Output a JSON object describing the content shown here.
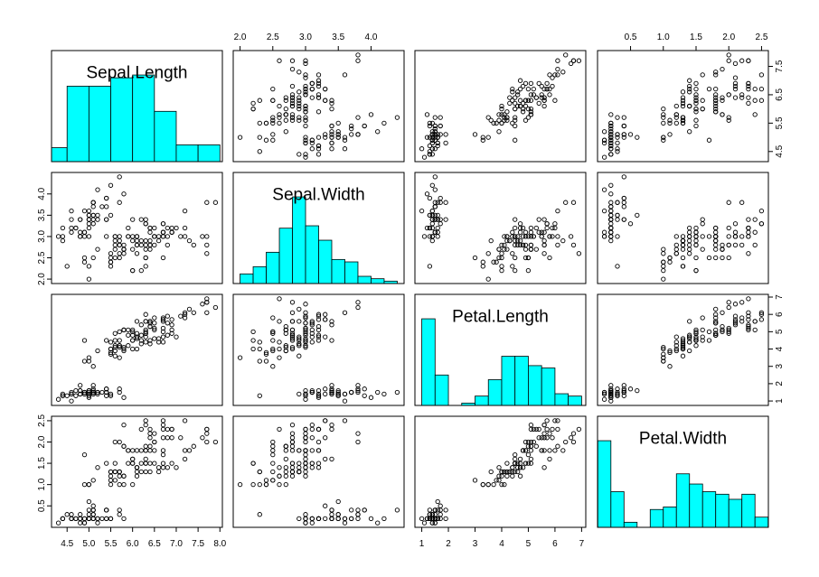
{
  "chart_data": {
    "type": "scatter-matrix",
    "variables": [
      "Sepal.Length",
      "Sepal.Width",
      "Petal.Length",
      "Petal.Width"
    ],
    "bar_color": "#00FFFF",
    "ranges": [
      [
        4.3,
        7.9
      ],
      [
        2.0,
        4.4
      ],
      [
        1.0,
        6.9
      ],
      [
        0.1,
        2.5
      ]
    ],
    "ticks": [
      [
        "4.5",
        "5.0",
        "5.5",
        "6.0",
        "6.5",
        "7.0",
        "7.5",
        "8.0"
      ],
      [
        "2.0",
        "2.5",
        "3.0",
        "3.5",
        "4.0"
      ],
      [
        "1",
        "2",
        "3",
        "4",
        "5",
        "6",
        "7"
      ],
      [
        "0.5",
        "1.0",
        "1.5",
        "2.0",
        "2.5"
      ]
    ],
    "right_ticks": [
      [
        "4.5",
        "5.5",
        "6.5",
        "7.5"
      ],
      [
        "2.0",
        "2.5",
        "3.0",
        "3.5",
        "4.0"
      ],
      [
        "1",
        "2",
        "3",
        "4",
        "5",
        "6",
        "7"
      ],
      [
        "0.5",
        "1.0",
        "1.5",
        "2.0",
        "2.5"
      ]
    ],
    "histograms": [
      {
        "breaks": [
          4.0,
          4.5,
          5.0,
          5.5,
          6.0,
          6.5,
          7.0,
          7.5,
          8.0
        ],
        "counts": [
          5,
          27,
          27,
          30,
          31,
          18,
          6,
          6
        ]
      },
      {
        "breaks": [
          2.0,
          2.2,
          2.4,
          2.6,
          2.8,
          3.0,
          3.2,
          3.4,
          3.6,
          3.8,
          4.0,
          4.2,
          4.4
        ],
        "counts": [
          4,
          7,
          13,
          23,
          36,
          24,
          18,
          10,
          9,
          3,
          2,
          1
        ]
      },
      {
        "breaks": [
          1.0,
          1.5,
          2.0,
          2.5,
          3.0,
          3.5,
          4.0,
          4.5,
          5.0,
          5.5,
          6.0,
          6.5,
          7.0
        ],
        "counts": [
          37,
          13,
          0,
          1,
          4,
          11,
          21,
          21,
          17,
          16,
          5,
          4
        ]
      },
      {
        "breaks": [
          0.0,
          0.2,
          0.4,
          0.6,
          0.8,
          1.0,
          1.2,
          1.4,
          1.6,
          1.8,
          2.0,
          2.2,
          2.4,
          2.6
        ],
        "counts": [
          34,
          14,
          2,
          0,
          7,
          8,
          21,
          17,
          14,
          13,
          11,
          13,
          4
        ]
      }
    ],
    "data": [
      [
        5.1,
        3.5,
        1.4,
        0.2
      ],
      [
        4.9,
        3.0,
        1.4,
        0.2
      ],
      [
        4.7,
        3.2,
        1.3,
        0.2
      ],
      [
        4.6,
        3.1,
        1.5,
        0.2
      ],
      [
        5.0,
        3.6,
        1.4,
        0.2
      ],
      [
        5.4,
        3.9,
        1.7,
        0.4
      ],
      [
        4.6,
        3.4,
        1.4,
        0.3
      ],
      [
        5.0,
        3.4,
        1.5,
        0.2
      ],
      [
        4.4,
        2.9,
        1.4,
        0.2
      ],
      [
        4.9,
        3.1,
        1.5,
        0.1
      ],
      [
        5.4,
        3.7,
        1.5,
        0.2
      ],
      [
        4.8,
        3.4,
        1.6,
        0.2
      ],
      [
        4.8,
        3.0,
        1.4,
        0.1
      ],
      [
        4.3,
        3.0,
        1.1,
        0.1
      ],
      [
        5.8,
        4.0,
        1.2,
        0.2
      ],
      [
        5.7,
        4.4,
        1.5,
        0.4
      ],
      [
        5.4,
        3.9,
        1.3,
        0.4
      ],
      [
        5.1,
        3.5,
        1.4,
        0.3
      ],
      [
        5.7,
        3.8,
        1.7,
        0.3
      ],
      [
        5.1,
        3.8,
        1.5,
        0.3
      ],
      [
        5.4,
        3.4,
        1.7,
        0.2
      ],
      [
        5.1,
        3.7,
        1.5,
        0.4
      ],
      [
        4.6,
        3.6,
        1.0,
        0.2
      ],
      [
        5.1,
        3.3,
        1.7,
        0.5
      ],
      [
        4.8,
        3.4,
        1.9,
        0.2
      ],
      [
        5.0,
        3.0,
        1.6,
        0.2
      ],
      [
        5.0,
        3.4,
        1.6,
        0.4
      ],
      [
        5.2,
        3.5,
        1.5,
        0.2
      ],
      [
        5.2,
        3.4,
        1.4,
        0.2
      ],
      [
        4.7,
        3.2,
        1.6,
        0.2
      ],
      [
        4.8,
        3.1,
        1.6,
        0.2
      ],
      [
        5.4,
        3.4,
        1.5,
        0.4
      ],
      [
        5.2,
        4.1,
        1.5,
        0.1
      ],
      [
        5.5,
        4.2,
        1.4,
        0.2
      ],
      [
        4.9,
        3.1,
        1.5,
        0.2
      ],
      [
        5.0,
        3.2,
        1.2,
        0.2
      ],
      [
        5.5,
        3.5,
        1.3,
        0.2
      ],
      [
        4.9,
        3.6,
        1.4,
        0.1
      ],
      [
        4.4,
        3.0,
        1.3,
        0.2
      ],
      [
        5.1,
        3.4,
        1.5,
        0.2
      ],
      [
        5.0,
        3.5,
        1.3,
        0.3
      ],
      [
        4.5,
        2.3,
        1.3,
        0.3
      ],
      [
        4.4,
        3.2,
        1.3,
        0.2
      ],
      [
        5.0,
        3.5,
        1.6,
        0.6
      ],
      [
        5.1,
        3.8,
        1.9,
        0.4
      ],
      [
        4.8,
        3.0,
        1.4,
        0.3
      ],
      [
        5.1,
        3.8,
        1.6,
        0.2
      ],
      [
        4.6,
        3.2,
        1.4,
        0.2
      ],
      [
        5.3,
        3.7,
        1.5,
        0.2
      ],
      [
        5.0,
        3.3,
        1.4,
        0.2
      ],
      [
        7.0,
        3.2,
        4.7,
        1.4
      ],
      [
        6.4,
        3.2,
        4.5,
        1.5
      ],
      [
        6.9,
        3.1,
        4.9,
        1.5
      ],
      [
        5.5,
        2.3,
        4.0,
        1.3
      ],
      [
        6.5,
        2.8,
        4.6,
        1.5
      ],
      [
        5.7,
        2.8,
        4.5,
        1.3
      ],
      [
        6.3,
        3.3,
        4.7,
        1.6
      ],
      [
        4.9,
        2.4,
        3.3,
        1.0
      ],
      [
        6.6,
        2.9,
        4.6,
        1.3
      ],
      [
        5.2,
        2.7,
        3.9,
        1.4
      ],
      [
        5.0,
        2.0,
        3.5,
        1.0
      ],
      [
        5.9,
        3.0,
        4.2,
        1.5
      ],
      [
        6.0,
        2.2,
        4.0,
        1.0
      ],
      [
        6.1,
        2.9,
        4.7,
        1.4
      ],
      [
        5.6,
        2.9,
        3.6,
        1.3
      ],
      [
        6.7,
        3.1,
        4.4,
        1.4
      ],
      [
        5.6,
        3.0,
        4.5,
        1.5
      ],
      [
        5.8,
        2.7,
        4.1,
        1.0
      ],
      [
        6.2,
        2.2,
        4.5,
        1.5
      ],
      [
        5.6,
        2.5,
        3.9,
        1.1
      ],
      [
        5.9,
        3.2,
        4.8,
        1.8
      ],
      [
        6.1,
        2.8,
        4.0,
        1.3
      ],
      [
        6.3,
        2.5,
        4.9,
        1.5
      ],
      [
        6.1,
        2.8,
        4.7,
        1.2
      ],
      [
        6.4,
        2.9,
        4.3,
        1.3
      ],
      [
        6.6,
        3.0,
        4.4,
        1.4
      ],
      [
        6.8,
        2.8,
        4.8,
        1.4
      ],
      [
        6.7,
        3.0,
        5.0,
        1.7
      ],
      [
        6.0,
        2.9,
        4.5,
        1.5
      ],
      [
        5.7,
        2.6,
        3.5,
        1.0
      ],
      [
        5.5,
        2.4,
        3.8,
        1.1
      ],
      [
        5.5,
        2.4,
        3.7,
        1.0
      ],
      [
        5.8,
        2.7,
        3.9,
        1.2
      ],
      [
        6.0,
        2.7,
        5.1,
        1.6
      ],
      [
        5.4,
        3.0,
        4.5,
        1.5
      ],
      [
        6.0,
        3.4,
        4.5,
        1.6
      ],
      [
        6.7,
        3.1,
        4.7,
        1.5
      ],
      [
        6.3,
        2.3,
        4.4,
        1.3
      ],
      [
        5.6,
        3.0,
        4.1,
        1.3
      ],
      [
        5.5,
        2.5,
        4.0,
        1.3
      ],
      [
        5.5,
        2.6,
        4.4,
        1.2
      ],
      [
        6.1,
        3.0,
        4.6,
        1.4
      ],
      [
        5.8,
        2.6,
        4.0,
        1.2
      ],
      [
        5.0,
        2.3,
        3.3,
        1.0
      ],
      [
        5.6,
        2.7,
        4.2,
        1.3
      ],
      [
        5.7,
        3.0,
        4.2,
        1.2
      ],
      [
        5.7,
        2.9,
        4.2,
        1.3
      ],
      [
        6.2,
        2.9,
        4.3,
        1.3
      ],
      [
        5.1,
        2.5,
        3.0,
        1.1
      ],
      [
        5.7,
        2.8,
        4.1,
        1.3
      ],
      [
        6.3,
        3.3,
        6.0,
        2.5
      ],
      [
        5.8,
        2.7,
        5.1,
        1.9
      ],
      [
        7.1,
        3.0,
        5.9,
        2.1
      ],
      [
        6.3,
        2.9,
        5.6,
        1.8
      ],
      [
        6.5,
        3.0,
        5.8,
        2.2
      ],
      [
        7.6,
        3.0,
        6.6,
        2.1
      ],
      [
        4.9,
        2.5,
        4.5,
        1.7
      ],
      [
        7.3,
        2.9,
        6.3,
        1.8
      ],
      [
        6.7,
        2.5,
        5.8,
        1.8
      ],
      [
        7.2,
        3.6,
        6.1,
        2.5
      ],
      [
        6.5,
        3.2,
        5.1,
        2.0
      ],
      [
        6.4,
        2.7,
        5.3,
        1.9
      ],
      [
        6.8,
        3.0,
        5.5,
        2.1
      ],
      [
        5.7,
        2.5,
        5.0,
        2.0
      ],
      [
        5.8,
        2.8,
        5.1,
        2.4
      ],
      [
        6.4,
        3.2,
        5.3,
        2.3
      ],
      [
        6.5,
        3.0,
        5.5,
        1.8
      ],
      [
        7.7,
        3.8,
        6.7,
        2.2
      ],
      [
        7.7,
        2.6,
        6.9,
        2.3
      ],
      [
        6.0,
        2.2,
        5.0,
        1.5
      ],
      [
        6.9,
        3.2,
        5.7,
        2.3
      ],
      [
        5.6,
        2.8,
        4.9,
        2.0
      ],
      [
        7.7,
        2.8,
        6.7,
        2.0
      ],
      [
        6.3,
        2.7,
        4.9,
        1.8
      ],
      [
        6.7,
        3.3,
        5.7,
        2.1
      ],
      [
        7.2,
        3.2,
        6.0,
        1.8
      ],
      [
        6.2,
        2.8,
        4.8,
        1.8
      ],
      [
        6.1,
        3.0,
        4.9,
        1.8
      ],
      [
        6.4,
        2.8,
        5.6,
        2.1
      ],
      [
        7.2,
        3.0,
        5.8,
        1.6
      ],
      [
        7.4,
        2.8,
        6.1,
        1.9
      ],
      [
        7.9,
        3.8,
        6.4,
        2.0
      ],
      [
        6.4,
        2.8,
        5.6,
        2.2
      ],
      [
        6.3,
        2.8,
        5.1,
        1.5
      ],
      [
        6.1,
        2.6,
        5.6,
        1.4
      ],
      [
        7.7,
        3.0,
        6.1,
        2.3
      ],
      [
        6.3,
        3.4,
        5.6,
        2.4
      ],
      [
        6.4,
        3.1,
        5.5,
        1.8
      ],
      [
        6.0,
        3.0,
        4.8,
        1.8
      ],
      [
        6.9,
        3.1,
        5.4,
        2.1
      ],
      [
        6.7,
        3.1,
        5.6,
        2.4
      ],
      [
        6.9,
        3.1,
        5.1,
        2.3
      ],
      [
        5.8,
        2.7,
        5.1,
        1.9
      ],
      [
        6.8,
        3.2,
        5.9,
        2.3
      ],
      [
        6.7,
        3.3,
        5.7,
        2.5
      ],
      [
        6.7,
        3.0,
        5.2,
        2.3
      ],
      [
        6.3,
        2.5,
        5.0,
        1.9
      ],
      [
        6.5,
        3.0,
        5.2,
        2.0
      ],
      [
        6.2,
        3.4,
        5.4,
        2.3
      ],
      [
        5.9,
        3.0,
        5.1,
        1.8
      ]
    ]
  }
}
